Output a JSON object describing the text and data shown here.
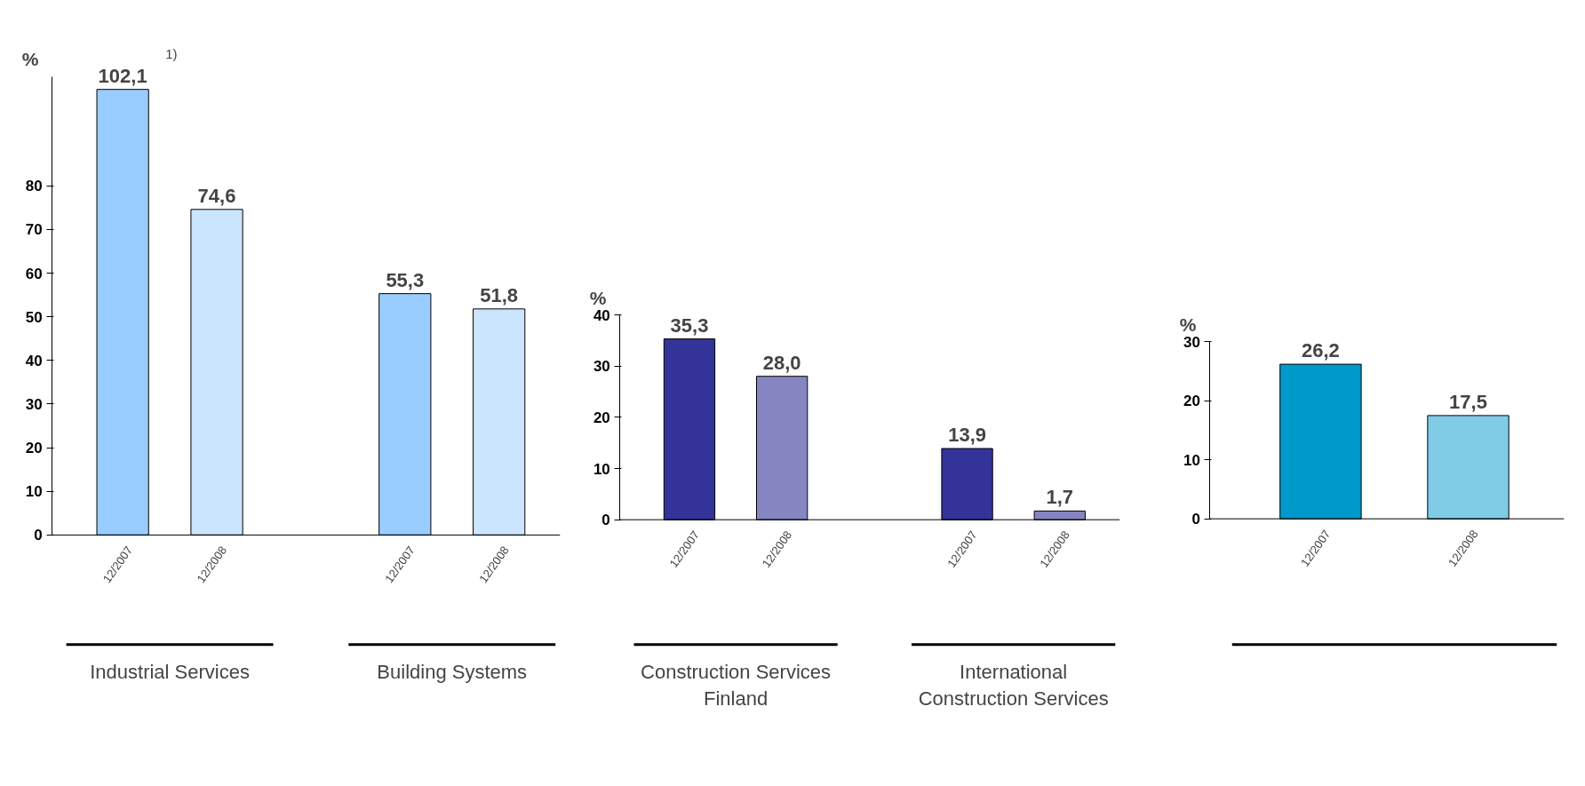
{
  "chart_data": [
    {
      "type": "bar",
      "ylabel": "%",
      "categories": [
        "12/2007",
        "12/2008",
        null,
        "12/2007",
        "12/2008"
      ],
      "values": [
        102.1,
        74.6,
        null,
        55.3,
        51.8
      ],
      "colors": [
        "#99ccff",
        "#cce5ff",
        "#99ccff",
        "#99ccff",
        "#cce5ff"
      ],
      "value_labels": [
        "102,1",
        "74,6",
        null,
        "55,3",
        "51,8"
      ],
      "ylim": [
        0,
        105
      ],
      "yticks": [
        0,
        10,
        20,
        30,
        40,
        50,
        60,
        70,
        80
      ],
      "grid": false,
      "legend": false,
      "annotations": [
        "Industrial Services",
        "Building Systems",
        "1)"
      ]
    },
    {
      "type": "bar",
      "ylabel": "%",
      "categories": [
        "12/2007",
        "12/2008",
        null,
        "12/2007",
        "12/2008"
      ],
      "values": [
        35.3,
        28.0,
        null,
        13.9,
        1.7
      ],
      "colors": [
        "#333399",
        "#8585c2",
        "#333399",
        "#333399",
        "#8585c2"
      ],
      "value_labels": [
        "35,3",
        "28,0",
        null,
        "13,9",
        "1,7"
      ],
      "ylim": [
        0,
        40
      ],
      "yticks": [
        0,
        10,
        20,
        30,
        40
      ],
      "grid": false,
      "legend": false,
      "annotations": [
        "Construction Services Finland",
        "International Construction Services"
      ]
    },
    {
      "type": "bar",
      "ylabel": "%",
      "categories": [
        "12/2007",
        "12/2008"
      ],
      "values": [
        26.2,
        17.5
      ],
      "colors": [
        "#0099cc",
        "#80cce6"
      ],
      "value_labels": [
        "26,2",
        "17,5"
      ],
      "ylim": [
        0,
        30
      ],
      "yticks": [
        0,
        10,
        20,
        30
      ],
      "grid": false,
      "legend": false
    }
  ]
}
